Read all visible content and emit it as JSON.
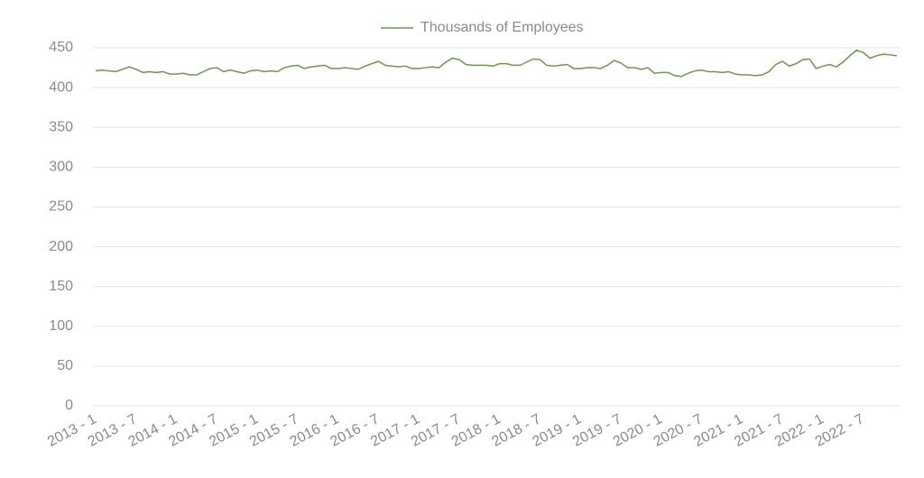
{
  "chart_data": {
    "type": "line",
    "categories": [
      "2013 - 1",
      null,
      null,
      null,
      null,
      null,
      "2013 - 7",
      null,
      null,
      null,
      null,
      null,
      "2014 - 1",
      null,
      null,
      null,
      null,
      null,
      "2014 - 7",
      null,
      null,
      null,
      null,
      null,
      "2015 - 1",
      null,
      null,
      null,
      null,
      null,
      "2015 - 7",
      null,
      null,
      null,
      null,
      null,
      "2016 - 1",
      null,
      null,
      null,
      null,
      null,
      "2016 - 7",
      null,
      null,
      null,
      null,
      null,
      "2017 - 1",
      null,
      null,
      null,
      null,
      null,
      "2017 - 7",
      null,
      null,
      null,
      null,
      null,
      "2018 - 1",
      null,
      null,
      null,
      null,
      null,
      "2018 - 7",
      null,
      null,
      null,
      null,
      null,
      "2019 - 1",
      null,
      null,
      null,
      null,
      null,
      "2019 - 7",
      null,
      null,
      null,
      null,
      null,
      "2020 - 1",
      null,
      null,
      null,
      null,
      null,
      "2020 - 7",
      null,
      null,
      null,
      null,
      null,
      "2021 - 1",
      null,
      null,
      null,
      null,
      null,
      "2021 - 7",
      null,
      null,
      null,
      null,
      null,
      "2022 - 1",
      null,
      null,
      null,
      null,
      null,
      "2022 - 7",
      null,
      null,
      null,
      null,
      null
    ],
    "series": [
      {
        "name": "Thousands of Employees",
        "color": "#6a9a4a",
        "values": [
          421,
          422,
          421,
          420,
          423,
          426,
          423,
          419,
          420,
          419,
          420,
          417,
          417,
          418,
          416,
          416,
          420,
          424,
          425,
          420,
          422,
          420,
          418,
          421,
          422,
          420,
          421,
          420,
          425,
          427,
          428,
          424,
          426,
          427,
          428,
          424,
          424,
          425,
          424,
          423,
          427,
          430,
          433,
          428,
          427,
          426,
          427,
          424,
          424,
          425,
          426,
          425,
          432,
          437,
          435,
          429,
          428,
          428,
          428,
          427,
          430,
          430,
          428,
          428,
          432,
          436,
          435,
          428,
          427,
          428,
          429,
          424,
          424,
          425,
          425,
          424,
          428,
          434,
          431,
          425,
          425,
          423,
          425,
          418,
          419,
          419,
          415,
          414,
          418,
          421,
          422,
          420,
          420,
          419,
          420,
          417,
          416,
          416,
          415,
          416,
          420,
          429,
          433,
          427,
          430,
          435,
          436,
          424,
          427,
          429,
          426,
          432,
          440,
          447,
          444,
          437,
          440,
          442,
          441,
          440
        ]
      }
    ],
    "ylim": [
      0,
      450
    ],
    "yticks": [
      0,
      50,
      100,
      150,
      200,
      250,
      300,
      350,
      400,
      450
    ],
    "grid": true,
    "legend": "top"
  }
}
